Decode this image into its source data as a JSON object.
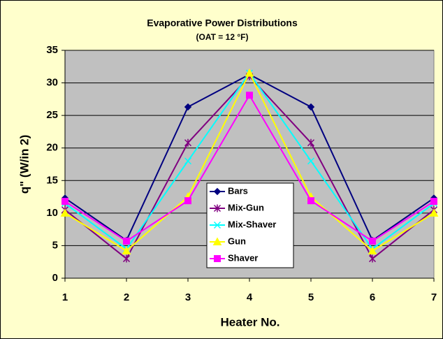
{
  "chart_data": {
    "type": "line",
    "title": "Evaporative Power Distributions",
    "subtitle": "(OAT = 12 °F)",
    "xlabel": "Heater No.",
    "ylabel": "q\" (W/in 2)",
    "x": [
      1,
      2,
      3,
      4,
      5,
      6,
      7
    ],
    "xlim": [
      1,
      7
    ],
    "xticks": [
      1,
      2,
      3,
      4,
      5,
      6,
      7
    ],
    "ylim": [
      0,
      35
    ],
    "yticks": [
      0,
      5,
      10,
      15,
      20,
      25,
      30,
      35
    ],
    "grid": true,
    "legend": "center",
    "series": [
      {
        "name": "Bars",
        "color": "#000080",
        "marker": "diamond",
        "values": [
          12.3,
          5.8,
          26.3,
          31.3,
          26.3,
          5.8,
          12.3
        ]
      },
      {
        "name": "Mix-Gun",
        "color": "#800080",
        "marker": "star",
        "values": [
          10.5,
          3.0,
          20.8,
          31.0,
          20.8,
          3.0,
          10.5
        ]
      },
      {
        "name": "Mix-Shaver",
        "color": "#00FFFF",
        "marker": "x",
        "values": [
          11.5,
          4.5,
          18.0,
          31.5,
          18.0,
          4.5,
          11.5
        ]
      },
      {
        "name": "Gun",
        "color": "#FFFF00",
        "marker": "triangle",
        "values": [
          10.0,
          4.2,
          12.5,
          31.5,
          12.5,
          4.2,
          10.0
        ]
      },
      {
        "name": "Shaver",
        "color": "#FF00FF",
        "marker": "square",
        "values": [
          11.8,
          5.7,
          11.9,
          28.1,
          11.9,
          5.7,
          11.8
        ]
      }
    ]
  }
}
